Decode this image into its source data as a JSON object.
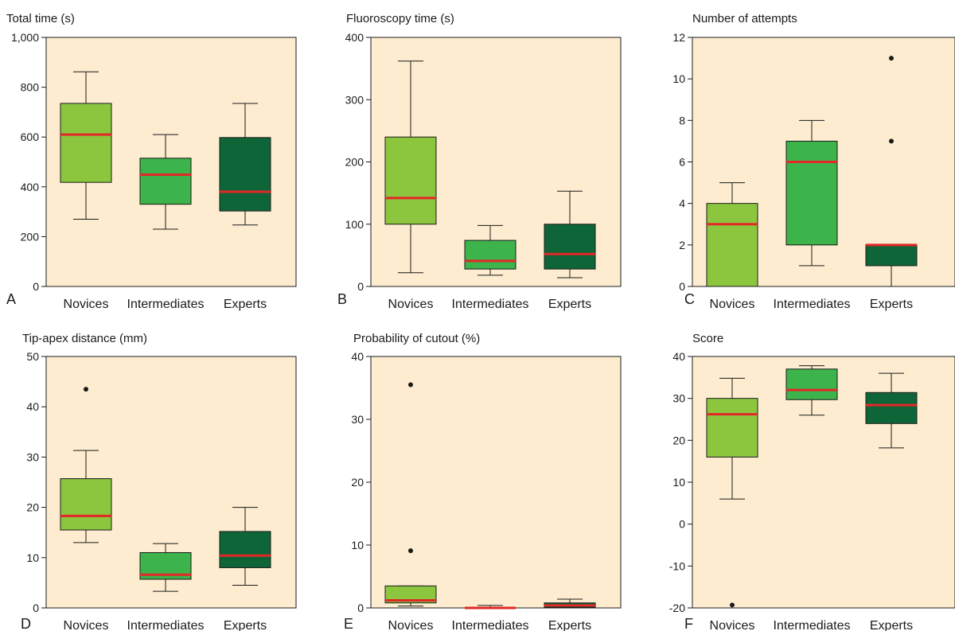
{
  "colors": {
    "plot_bg": "#fdecd0",
    "novices": "#8cc63f",
    "intermediates": "#3cb44b",
    "experts": "#0e6638",
    "median": "#e32727",
    "axis": "#1a1a1a"
  },
  "chart_data": [
    {
      "panel": "A",
      "type": "boxplot",
      "title": "Total time (s)",
      "categories": [
        "Novices",
        "Intermediates",
        "Experts"
      ],
      "ylim": [
        0,
        1000
      ],
      "yticks": [
        0,
        200,
        400,
        600,
        800,
        1000
      ],
      "yticklabels": [
        "0",
        "200",
        "400",
        "600",
        "800",
        "1,000"
      ],
      "boxes": [
        {
          "min": 270,
          "q1": 418,
          "median": 610,
          "q3": 735,
          "max": 862,
          "outliers": []
        },
        {
          "min": 230,
          "q1": 330,
          "median": 449,
          "q3": 515,
          "max": 610,
          "outliers": []
        },
        {
          "min": 247,
          "q1": 303,
          "median": 380,
          "q3": 598,
          "max": 735,
          "outliers": []
        }
      ]
    },
    {
      "panel": "B",
      "type": "boxplot",
      "title": "Fluoroscopy time (s)",
      "categories": [
        "Novices",
        "Intermediates",
        "Experts"
      ],
      "ylim": [
        0,
        400
      ],
      "yticks": [
        0,
        100,
        200,
        300,
        400
      ],
      "yticklabels": [
        "0",
        "100",
        "200",
        "300",
        "400"
      ],
      "boxes": [
        {
          "min": 22,
          "q1": 100,
          "median": 142,
          "q3": 240,
          "max": 362,
          "outliers": []
        },
        {
          "min": 18,
          "q1": 28,
          "median": 41,
          "q3": 74,
          "max": 98,
          "outliers": []
        },
        {
          "min": 14,
          "q1": 28,
          "median": 52,
          "q3": 100,
          "max": 153,
          "outliers": []
        }
      ]
    },
    {
      "panel": "C",
      "type": "boxplot",
      "title": "Number of attempts",
      "categories": [
        "Novices",
        "Intermediates",
        "Experts"
      ],
      "ylim": [
        0,
        12
      ],
      "yticks": [
        0,
        2,
        4,
        6,
        8,
        10,
        12
      ],
      "yticklabels": [
        "0",
        "2",
        "4",
        "6",
        "8",
        "10",
        "12"
      ],
      "boxes": [
        {
          "min": 0,
          "q1": 0,
          "median": 3,
          "q3": 4,
          "max": 5,
          "outliers": []
        },
        {
          "min": 1,
          "q1": 2,
          "median": 6,
          "q3": 7,
          "max": 8,
          "outliers": []
        },
        {
          "min": 0,
          "q1": 1,
          "median": 2,
          "q3": 2,
          "max": 2,
          "outliers": [
            7,
            11
          ]
        }
      ]
    },
    {
      "panel": "D",
      "type": "boxplot",
      "title": "Tip-apex distance (mm)",
      "categories": [
        "Novices",
        "Intermediates",
        "Experts"
      ],
      "ylim": [
        0,
        50
      ],
      "yticks": [
        0,
        10,
        20,
        30,
        40,
        50
      ],
      "yticklabels": [
        "0",
        "10",
        "20",
        "30",
        "40",
        "50"
      ],
      "boxes": [
        {
          "min": 13,
          "q1": 15.5,
          "median": 18.3,
          "q3": 25.7,
          "max": 31.3,
          "outliers": [
            43.5
          ]
        },
        {
          "min": 3.3,
          "q1": 5.7,
          "median": 6.6,
          "q3": 11,
          "max": 12.8,
          "outliers": []
        },
        {
          "min": 4.5,
          "q1": 8,
          "median": 10.4,
          "q3": 15.2,
          "max": 20,
          "outliers": []
        }
      ]
    },
    {
      "panel": "E",
      "type": "boxplot",
      "title": "Probability of cutout (%)",
      "categories": [
        "Novices",
        "Intermediates",
        "Experts"
      ],
      "ylim": [
        0,
        40
      ],
      "yticks": [
        0,
        10,
        20,
        30,
        40
      ],
      "yticklabels": [
        "0",
        "10",
        "20",
        "30",
        "40"
      ],
      "boxes": [
        {
          "min": 0.3,
          "q1": 0.8,
          "median": 1.2,
          "q3": 3.5,
          "max": 3.5,
          "outliers": [
            9.1,
            35.5
          ]
        },
        {
          "min": 0,
          "q1": 0,
          "median": 0,
          "q3": 0,
          "max": 0.4,
          "outliers": []
        },
        {
          "min": 0,
          "q1": 0.1,
          "median": 0.4,
          "q3": 0.8,
          "max": 1.4,
          "outliers": []
        }
      ]
    },
    {
      "panel": "F",
      "type": "boxplot",
      "title": "Score",
      "categories": [
        "Novices",
        "Intermediates",
        "Experts"
      ],
      "ylim": [
        -20,
        40
      ],
      "yticks": [
        -20,
        -10,
        0,
        10,
        20,
        30,
        40
      ],
      "yticklabels": [
        "-20",
        "-10",
        "0",
        "10",
        "20",
        "30",
        "40"
      ],
      "boxes": [
        {
          "min": 6,
          "q1": 16,
          "median": 26.2,
          "q3": 30,
          "max": 34.8,
          "outliers": [
            -19.3
          ]
        },
        {
          "min": 26,
          "q1": 29.7,
          "median": 32,
          "q3": 37,
          "max": 37.8,
          "outliers": []
        },
        {
          "min": 18.2,
          "q1": 24,
          "median": 28.4,
          "q3": 31.4,
          "max": 36,
          "outliers": []
        }
      ]
    }
  ]
}
